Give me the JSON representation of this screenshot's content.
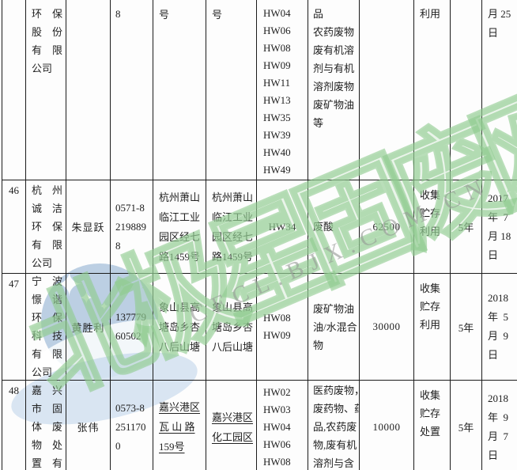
{
  "watermark": {
    "brand_text": "北极星固废网",
    "url_text": "CECL.BJX.COM.CN",
    "star_glyph": "✦",
    "brand_color": "#8fcb8f",
    "url_color": "#a8aba8",
    "logo_color": "#80a4cc"
  },
  "rows": [
    {
      "id": "",
      "company": "环　保\n股　份\n有　限\n公司",
      "contact": "",
      "phone": "8",
      "address1": "号",
      "address2": "号",
      "codes": "HW04\nHW06\nHW08\nHW09\nHW11\nHW13\nHW35\nHW39\nHW40\nHW49",
      "waste": "品\n农药废物\n废有机溶\n剂与有机\n溶剂废物\n废矿物油\n等",
      "quantity": "",
      "mode": "利用",
      "term": "",
      "date": "月 25\n日"
    },
    {
      "id": "46",
      "company": "杭　州\n诚　洁\n环　保\n有　限\n公司",
      "contact": "朱显跃",
      "phone": "0571-8\n219889\n8",
      "address1": "杭州萧山\n临江工业\n园区经七\n路1459号",
      "address2": "杭州萧山\n临江工业\n园区经七\n路1459号",
      "codes": "HW34",
      "waste": "废酸",
      "quantity": "62500",
      "mode": "收集\n贮存\n利用",
      "term": "5年",
      "date": "2017\n年  7\n月 18\n日"
    },
    {
      "id": "47",
      "company": "宁　波\n憬　谐\n环　保\n科　技\n有　限\n公司",
      "contact": "黄胜利",
      "phone": "137779\n60502",
      "address1": "象山县高\n塘岛乡杏\n八后山塘",
      "address2": "象山县高\n塘岛乡杏\n八后山塘",
      "codes": "HW08\nHW09",
      "waste": "废矿物油\n油/水混合\n物",
      "quantity": "30000",
      "mode": "收集\n贮存\n利用",
      "term": "5年",
      "date": "2018\n年  5\n月  9\n日"
    },
    {
      "id": "48",
      "company": "嘉　兴\n市　固\n体　废\n物　处\n置　有",
      "contact": "张伟",
      "phone": "0573-8\n251170\n0",
      "address1": "嘉兴港区\n瓦 山 路\n159号",
      "address2": "嘉兴港区\n化工园区",
      "codes": "HW02\nHW03\nHW04\nHW06\nHW08",
      "waste": "医药废物，\n废药物、药\n品,农药废\n物,废有机\n溶剂与含",
      "quantity": "10000",
      "mode": "收集\n贮存\n处置",
      "term": "5年",
      "date": "2018\n年  9\n月  7\n日"
    }
  ]
}
